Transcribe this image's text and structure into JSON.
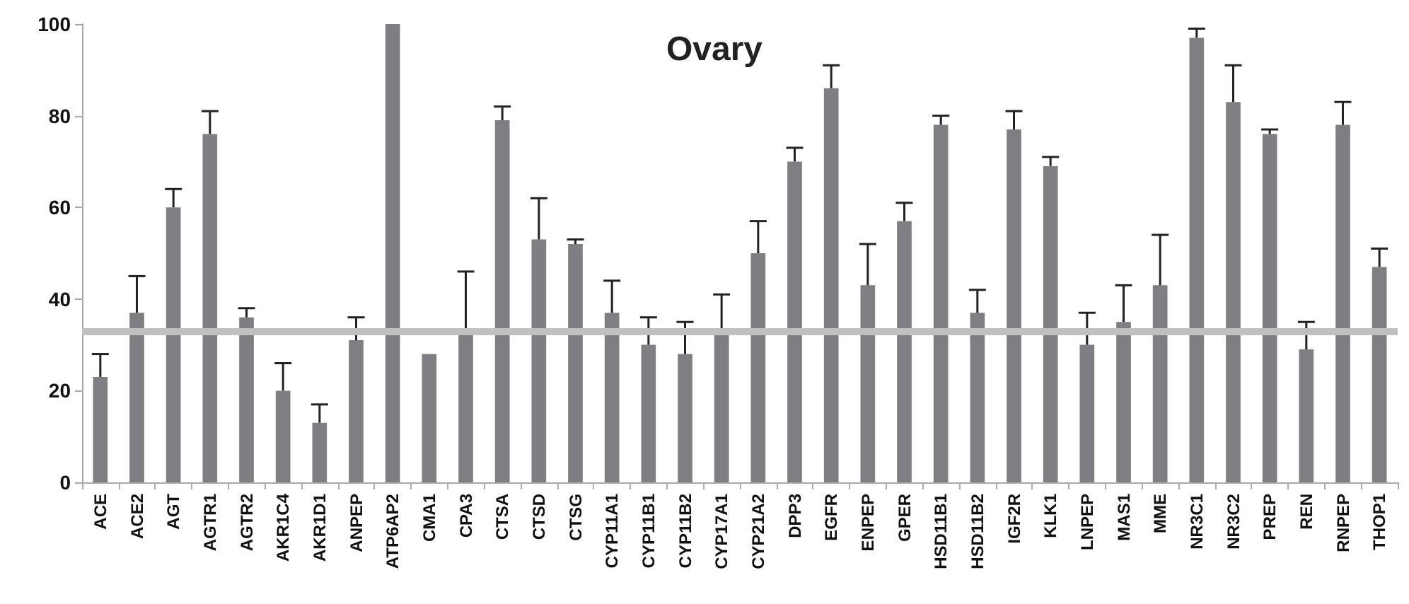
{
  "chart_data": {
    "type": "bar",
    "title": "Ovary",
    "categories": [
      "ACE",
      "ACE2",
      "AGT",
      "AGTR1",
      "AGTR2",
      "AKR1C4",
      "AKR1D1",
      "ANPEP",
      "ATP6AP2",
      "CMA1",
      "CPA3",
      "CTSA",
      "CTSD",
      "CTSG",
      "CYP11A1",
      "CYP11B1",
      "CYP11B2",
      "CYP17A1",
      "CYP21A2",
      "DPP3",
      "EGFR",
      "ENPEP",
      "GPER",
      "HSD11B1",
      "HSD11B2",
      "IGF2R",
      "KLK1",
      "LNPEP",
      "MAS1",
      "MME",
      "NR3C1",
      "NR3C2",
      "PREP",
      "REN",
      "RNPEP",
      "THOP1"
    ],
    "values": [
      23,
      37,
      60,
      76,
      36,
      20,
      13,
      31,
      100,
      28,
      33,
      79,
      53,
      52,
      37,
      30,
      28,
      33,
      50,
      70,
      86,
      43,
      57,
      78,
      37,
      77,
      69,
      30,
      35,
      43,
      97,
      83,
      76,
      29,
      78,
      47
    ],
    "errors": [
      [
        23,
        28
      ],
      [
        37,
        45
      ],
      [
        60,
        64
      ],
      [
        76,
        81
      ],
      [
        36,
        38
      ],
      [
        20,
        26
      ],
      [
        13,
        17
      ],
      [
        31,
        36
      ],
      null,
      null,
      [
        33,
        46
      ],
      [
        79,
        82
      ],
      [
        53,
        62
      ],
      [
        52,
        53
      ],
      [
        37,
        44
      ],
      [
        30,
        36
      ],
      [
        28,
        35
      ],
      [
        33,
        41
      ],
      [
        50,
        57
      ],
      [
        70,
        73
      ],
      [
        86,
        91
      ],
      [
        43,
        52
      ],
      [
        57,
        61
      ],
      [
        78,
        80
      ],
      [
        37,
        42
      ],
      [
        77,
        81
      ],
      [
        69,
        71
      ],
      [
        30,
        37
      ],
      [
        35,
        43
      ],
      [
        43,
        54
      ],
      [
        97,
        99
      ],
      [
        83,
        91
      ],
      [
        76,
        77
      ],
      [
        29,
        35
      ],
      [
        78,
        83
      ],
      [
        47,
        51
      ]
    ],
    "color": "#7f7f83",
    "ylim": [
      0,
      100
    ],
    "yticks": [
      0,
      20,
      40,
      60,
      80,
      100
    ],
    "ref_lines": [
      {
        "axis": "y",
        "value": 33,
        "color": "#c0c0c0"
      }
    ],
    "grid": false
  }
}
